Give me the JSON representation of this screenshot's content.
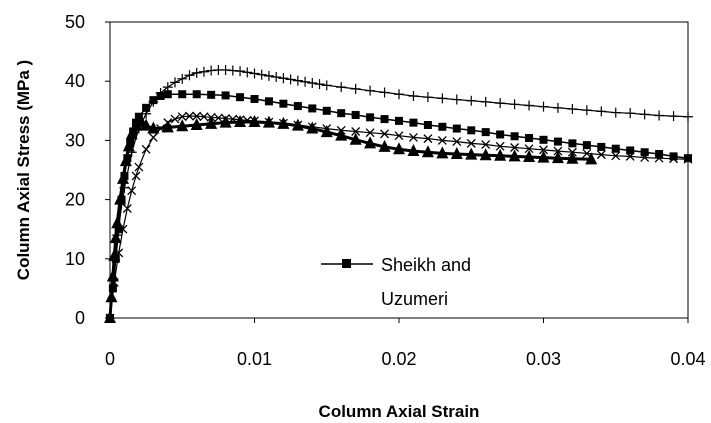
{
  "chart_data": {
    "type": "line",
    "title": "",
    "xlabel": "Column Axial Strain",
    "ylabel": "Column Axial Stress (MPa )",
    "xlim": [
      0,
      0.04
    ],
    "ylim": [
      0,
      50
    ],
    "xticks": [
      "0",
      "0.01",
      "0.02",
      "0.03",
      "0.04"
    ],
    "yticks": [
      "0",
      "10",
      "20",
      "30",
      "40",
      "50"
    ],
    "grid": false,
    "legend_position": "center",
    "colors": {
      "series": "#000000"
    },
    "series": [
      {
        "name": "Sheikh and Uzumeri",
        "marker": "square",
        "line_width": 1.5,
        "x": [
          0,
          0.0002,
          0.0004,
          0.0006,
          0.0008,
          0.001,
          0.0012,
          0.0014,
          0.0016,
          0.0018,
          0.002,
          0.0025,
          0.003,
          0.0035,
          0.004,
          0.005,
          0.006,
          0.007,
          0.008,
          0.009,
          0.01,
          0.011,
          0.012,
          0.013,
          0.014,
          0.015,
          0.016,
          0.017,
          0.018,
          0.019,
          0.02,
          0.021,
          0.022,
          0.023,
          0.024,
          0.025,
          0.026,
          0.027,
          0.028,
          0.029,
          0.03,
          0.031,
          0.032,
          0.033,
          0.034,
          0.035,
          0.036,
          0.037,
          0.038,
          0.039,
          0.04
        ],
        "y": [
          0,
          5,
          10,
          15,
          20,
          24,
          27,
          29.5,
          31.5,
          33,
          34,
          35.5,
          36.8,
          37.5,
          37.8,
          37.8,
          37.8,
          37.7,
          37.6,
          37.3,
          37,
          36.6,
          36.2,
          35.8,
          35.4,
          35,
          34.6,
          34.3,
          33.9,
          33.6,
          33.3,
          33,
          32.6,
          32.3,
          32,
          31.7,
          31.4,
          31,
          30.7,
          30.4,
          30.1,
          29.8,
          29.5,
          29.2,
          28.9,
          28.6,
          28.3,
          28,
          27.7,
          27.3,
          27
        ]
      },
      {
        "name": "",
        "marker": "plus",
        "line_width": 1.2,
        "x": [
          0,
          0.0005,
          0.001,
          0.0015,
          0.002,
          0.0025,
          0.003,
          0.0035,
          0.004,
          0.0045,
          0.005,
          0.0055,
          0.006,
          0.0065,
          0.007,
          0.0075,
          0.008,
          0.0085,
          0.009,
          0.0095,
          0.01,
          0.0105,
          0.011,
          0.0115,
          0.012,
          0.0125,
          0.013,
          0.0135,
          0.014,
          0.0145,
          0.015,
          0.016,
          0.017,
          0.018,
          0.019,
          0.02,
          0.021,
          0.022,
          0.023,
          0.024,
          0.025,
          0.026,
          0.027,
          0.028,
          0.029,
          0.03,
          0.031,
          0.032,
          0.033,
          0.034,
          0.035,
          0.036,
          0.037,
          0.038,
          0.039,
          0.04
        ],
        "y": [
          0,
          14,
          22,
          28,
          32,
          34.5,
          36.5,
          38,
          39,
          39.8,
          40.4,
          41,
          41.4,
          41.6,
          41.8,
          41.9,
          41.9,
          41.8,
          41.7,
          41.5,
          41.3,
          41.1,
          40.9,
          40.7,
          40.5,
          40.3,
          40.1,
          39.9,
          39.7,
          39.5,
          39.3,
          39,
          38.7,
          38.4,
          38.1,
          37.8,
          37.5,
          37.3,
          37.1,
          36.9,
          36.7,
          36.5,
          36.3,
          36.1,
          35.9,
          35.7,
          35.5,
          35.3,
          35.1,
          34.9,
          34.7,
          34.6,
          34.4,
          34.2,
          34.1,
          34
        ]
      },
      {
        "name": "",
        "marker": "x",
        "line_width": 1.2,
        "x": [
          0,
          0.0003,
          0.0006,
          0.0009,
          0.0012,
          0.0015,
          0.0018,
          0.002,
          0.0025,
          0.003,
          0.0035,
          0.004,
          0.0045,
          0.005,
          0.0055,
          0.006,
          0.0065,
          0.007,
          0.0075,
          0.008,
          0.0085,
          0.009,
          0.0095,
          0.01,
          0.011,
          0.012,
          0.013,
          0.014,
          0.015,
          0.016,
          0.017,
          0.018,
          0.019,
          0.02,
          0.021,
          0.022,
          0.023,
          0.024,
          0.025,
          0.026,
          0.027,
          0.028,
          0.029,
          0.03,
          0.031,
          0.032,
          0.033,
          0.034,
          0.035,
          0.036,
          0.037,
          0.038,
          0.039,
          0.04
        ],
        "y": [
          0,
          6,
          11,
          15,
          18.5,
          21.5,
          24,
          25.5,
          28.5,
          30.5,
          32,
          33,
          33.6,
          34,
          34.1,
          34.1,
          34,
          33.9,
          33.8,
          33.7,
          33.6,
          33.5,
          33.4,
          33.3,
          33.1,
          32.9,
          32.6,
          32.3,
          32,
          31.7,
          31.5,
          31.3,
          31.1,
          30.8,
          30.5,
          30.3,
          30,
          29.8,
          29.5,
          29.3,
          29,
          28.8,
          28.6,
          28.4,
          28.2,
          28,
          27.8,
          27.6,
          27.4,
          27.3,
          27.1,
          27,
          26.9,
          26.8
        ]
      },
      {
        "name": "",
        "marker": "triangle",
        "line_width": 3,
        "x": [
          0,
          0.0001,
          0.0002,
          0.0003,
          0.0004,
          0.0005,
          0.0007,
          0.0009,
          0.0011,
          0.0013,
          0.0015,
          0.0018,
          0.002,
          0.0022,
          0.0025,
          0.003,
          0.004,
          0.005,
          0.006,
          0.007,
          0.008,
          0.009,
          0.01,
          0.011,
          0.012,
          0.013,
          0.014,
          0.015,
          0.016,
          0.017,
          0.018,
          0.019,
          0.02,
          0.021,
          0.022,
          0.023,
          0.024,
          0.025,
          0.026,
          0.027,
          0.028,
          0.029,
          0.03,
          0.031,
          0.032,
          0.0333
        ],
        "y": [
          0,
          3.5,
          7,
          10.5,
          13.5,
          16,
          20,
          23.5,
          26.5,
          29,
          31,
          32.5,
          33,
          33,
          32.5,
          32,
          32.2,
          32.4,
          32.6,
          32.8,
          33,
          33.1,
          33.1,
          33,
          32.8,
          32.5,
          32,
          31.4,
          30.8,
          30.1,
          29.5,
          28.9,
          28.5,
          28.2,
          28,
          27.8,
          27.7,
          27.6,
          27.5,
          27.4,
          27.3,
          27.2,
          27.1,
          27,
          26.9,
          26.8
        ]
      }
    ]
  }
}
